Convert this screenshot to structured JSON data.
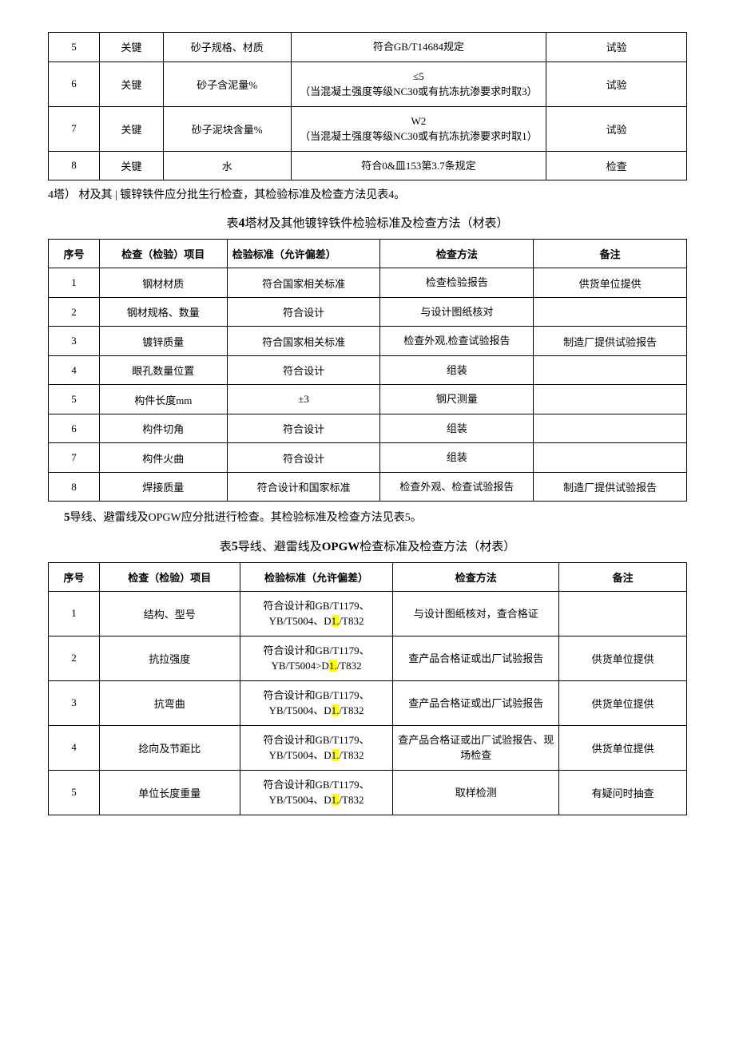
{
  "table3": {
    "rows": [
      {
        "seq": "5",
        "type": "关键",
        "item": "砂子规格、材质",
        "standard": "符合GB/T14684规定",
        "method": "试验"
      },
      {
        "seq": "6",
        "type": "关键",
        "item": "砂子含泥量%",
        "standard": "≤5\n（当混凝土强度等级NC30或有抗冻抗渗要求时取3）",
        "method": "试验"
      },
      {
        "seq": "7",
        "type": "关键",
        "item": "砂子泥块含量%",
        "standard": "W2\n（当混凝土强度等级NC30或有抗冻抗渗要求时取1）",
        "method": "试验"
      },
      {
        "seq": "8",
        "type": "关键",
        "item": "水",
        "standard": "符合0&皿153第3.7条规定",
        "method": "检查"
      }
    ]
  },
  "intro4": {
    "prefix": "4塔）",
    "text": "材及其 | 镀锌铁件应分批生行检查，其检验标准及检查方法见表4。"
  },
  "title4": {
    "pre": "表",
    "num": "4",
    "text": "塔材及其他镀锌铁件检验标准及检查方法（材表）"
  },
  "table4": {
    "headers": {
      "seq": "序号",
      "item": "检查（检验）项目",
      "standard": "检验标准（允许偏差）",
      "method": "检查方法",
      "note": "备注"
    },
    "rows": [
      {
        "seq": "1",
        "item": "钢材材质",
        "standard": "符合国家相关标准",
        "method": "检查检验报告",
        "note": "供货单位提供"
      },
      {
        "seq": "2",
        "item": "钢材规格、数量",
        "standard": "符合设计",
        "method": "与设计图纸核对",
        "note": ""
      },
      {
        "seq": "3",
        "item": "镀锌质量",
        "standard": "符合国家相关标准",
        "method": "检查外观,检查试验报告",
        "note": "制造厂提供试验报告"
      },
      {
        "seq": "4",
        "item": "眼孔数量位置",
        "standard": "符合设计",
        "method": "组装",
        "note": ""
      },
      {
        "seq": "5",
        "item": "构件长度mm",
        "standard": "±3",
        "method": "钢尺测量",
        "note": ""
      },
      {
        "seq": "6",
        "item": "构件切角",
        "standard": "符合设计",
        "method": "组装",
        "note": ""
      },
      {
        "seq": "7",
        "item": "构件火曲",
        "standard": "符合设计",
        "method": "组装",
        "note": ""
      },
      {
        "seq": "8",
        "item": "焊接质量",
        "standard": "符合设计和国家标准",
        "method": "检查外观、检查试验报告",
        "note": "制造厂提供试验报告"
      }
    ]
  },
  "intro5": {
    "lead": "5",
    "text": "导线、避雷线及OPGW应分批进行检查。其检验标准及检查方法见表5。"
  },
  "title5": {
    "pre": "表",
    "num": "5",
    "mid": "导线、避雷线及",
    "bold": "OPGW",
    "post": "检查标准及检查方法（材表）"
  },
  "table5": {
    "headers": {
      "seq": "序号",
      "item": "检查（检验）项目",
      "standard": "检验标准（允许偏差）",
      "method": "检查方法",
      "note": "备注"
    },
    "rows": [
      {
        "seq": "1",
        "item": "结构、型号",
        "std_pre": "符合设计和GB/T1179、YB/T5004、D",
        "std_hl": "1.",
        "std_post": "/T832",
        "method": "与设计图纸核对，查合格证",
        "note": ""
      },
      {
        "seq": "2",
        "item": "抗拉强度",
        "std_pre": "符合设计和GB/T1179、YB/T5004>D",
        "std_hl": "1.",
        "std_post": "/T832",
        "method": "查产品合格证或出厂试验报告",
        "note": "供货单位提供"
      },
      {
        "seq": "3",
        "item": "抗弯曲",
        "std_pre": "符合设计和GB/T1179、YB/T5004、D",
        "std_hl": "1.",
        "std_post": "/T832",
        "method": "查产品合格证或出厂试验报告",
        "note": "供货单位提供"
      },
      {
        "seq": "4",
        "item": "捻向及节距比",
        "std_pre": "符合设计和GB/T1179、YB/T5004、D",
        "std_hl": "1.",
        "std_post": "/T832",
        "method": "查产品合格证或出厂试验报告、现场检查",
        "note": "供货单位提供"
      },
      {
        "seq": "5",
        "item": "单位长度重量",
        "std_pre": "符合设计和GB/T1179、YB/T5004、D",
        "std_hl": "1.",
        "std_post": "/T832",
        "method": "取样检测",
        "note": "有疑问时抽查"
      }
    ]
  }
}
